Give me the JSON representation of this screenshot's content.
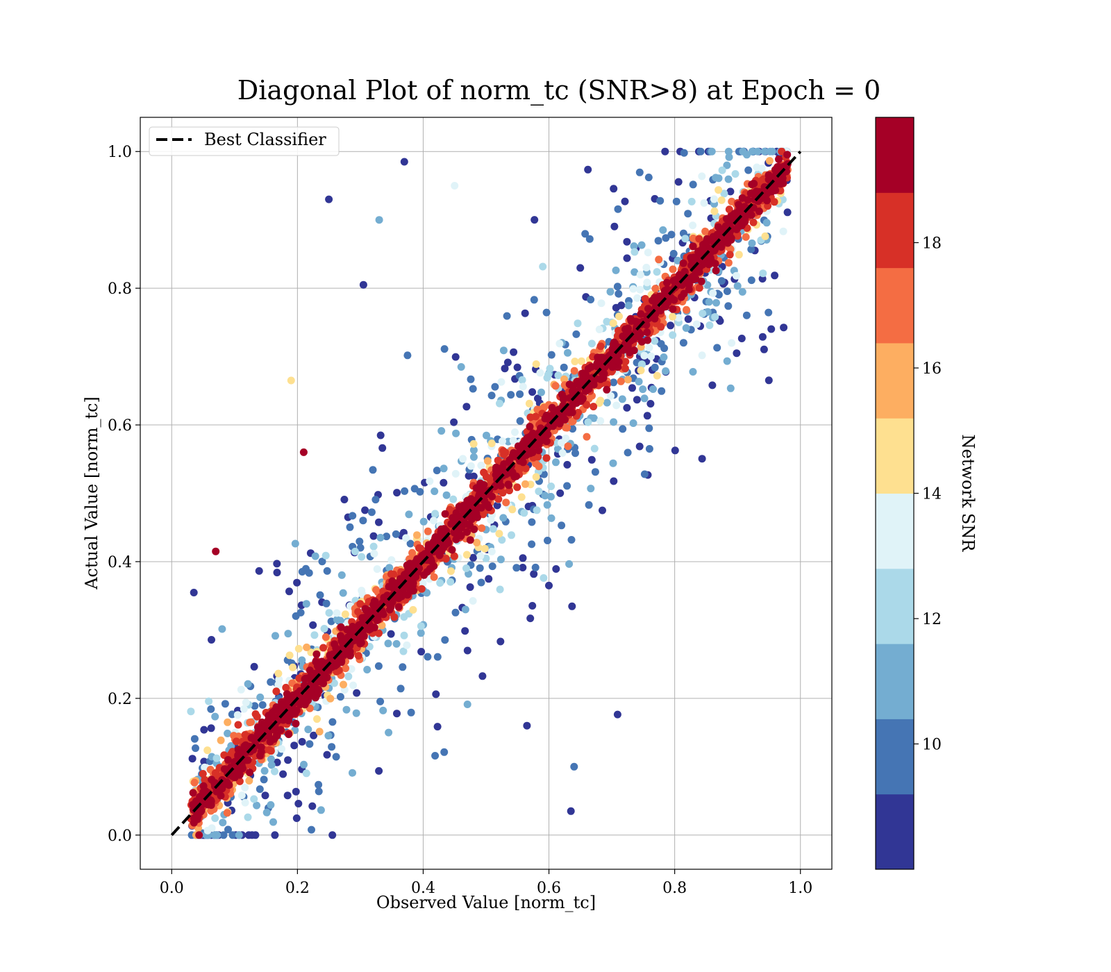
{
  "chart_data": {
    "type": "scatter",
    "title": "Diagonal Plot of norm_tc (SNR>8) at Epoch = 0",
    "xlabel": "Observed Value [norm_tc]",
    "ylabel": "Actual Value [norm_tc]",
    "xlim": [
      -0.05,
      1.05
    ],
    "ylim": [
      -0.05,
      1.05
    ],
    "xticks": [
      "0.0",
      "0.2",
      "0.4",
      "0.6",
      "0.8",
      "1.0"
    ],
    "yticks": [
      "0.0",
      "0.2",
      "0.4",
      "0.6",
      "0.8",
      "1.0"
    ],
    "grid": true,
    "legend": {
      "location": "top-left",
      "entries": [
        {
          "label": "Best Classifier",
          "style": "black dashed line"
        }
      ]
    },
    "reference_line": {
      "name": "Best Classifier",
      "x": [
        0.0,
        1.0
      ],
      "y": [
        0.0,
        1.0
      ]
    },
    "colorbar": {
      "label": "Network SNR",
      "range": [
        8,
        20
      ],
      "ticks": [
        "10",
        "12",
        "14",
        "16",
        "18"
      ],
      "tick_values": [
        10,
        12,
        14,
        16,
        18
      ],
      "colors": [
        "#313695",
        "#4575b4",
        "#74add1",
        "#abd9e9",
        "#e0f3f8",
        "#fee090",
        "#fdae61",
        "#f46d43",
        "#d73027",
        "#a50026"
      ]
    },
    "distribution": {
      "description": "dense points along y = x; high-SNR (red) points tightly on diagonal, low-SNR (blue) points scattered far from it",
      "x_range": [
        0.03,
        0.98
      ],
      "y_range": [
        0.0,
        1.0
      ]
    },
    "notable_points": [
      {
        "x": 0.37,
        "y": 0.985,
        "snr": 8.5
      },
      {
        "x": 0.25,
        "y": 0.93,
        "snr": 8.5
      },
      {
        "x": 0.07,
        "y": 0.415,
        "snr": 19.5
      },
      {
        "x": 0.685,
        "y": 0.475,
        "snr": 8.5
      },
      {
        "x": 0.6,
        "y": 0.365,
        "snr": 8.5
      },
      {
        "x": 0.635,
        "y": 0.035,
        "snr": 8.5
      },
      {
        "x": 0.64,
        "y": 0.1,
        "snr": 10.0
      },
      {
        "x": 0.565,
        "y": 0.16,
        "snr": 8.5
      },
      {
        "x": 0.21,
        "y": 0.56,
        "snr": 19.5
      },
      {
        "x": 0.19,
        "y": 0.665,
        "snr": 14.0
      },
      {
        "x": 0.76,
        "y": 0.565,
        "snr": 10.0
      },
      {
        "x": 0.305,
        "y": 0.805,
        "snr": 8.5
      },
      {
        "x": 0.33,
        "y": 0.9,
        "snr": 11.0
      },
      {
        "x": 0.45,
        "y": 0.95,
        "snr": 13.0
      }
    ]
  }
}
